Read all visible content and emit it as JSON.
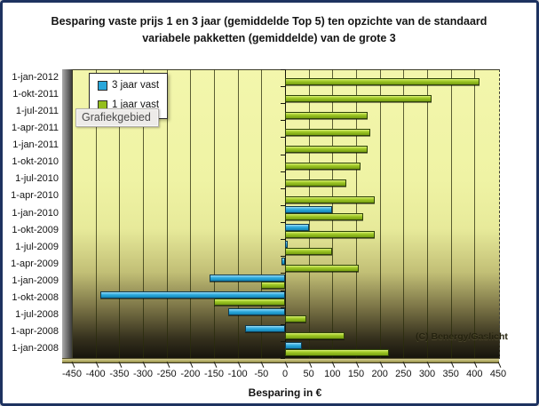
{
  "window": {
    "border_color": "#1d3260",
    "background": "#ffffff"
  },
  "tooltip": "Grafiekgebied",
  "copyright": "(C) Benergy/Gaslicht",
  "chart_data": {
    "type": "bar",
    "orientation": "horizontal",
    "title": "Besparing vaste prijs 1 en 3 jaar (gemiddelde Top 5) ten opzichte van de standaard variabele pakketten (gemiddelde) van de grote 3",
    "xlabel": "Besparing in €",
    "ylabel": "",
    "categories": [
      "1-jan-2012",
      "1-okt-2011",
      "1-jul-2011",
      "1-apr-2011",
      "1-jan-2011",
      "1-okt-2010",
      "1-jul-2010",
      "1-apr-2010",
      "1-jan-2010",
      "1-okt-2009",
      "1-jul-2009",
      "1-apr-2009",
      "1-jan-2009",
      "1-okt-2008",
      "1-jul-2008",
      "1-apr-2008",
      "1-jan-2008"
    ],
    "categories_order": "top-to-bottom",
    "series": [
      {
        "name": "3 jaar vast",
        "color": "#29a7db",
        "values": [
          null,
          null,
          null,
          null,
          null,
          null,
          null,
          null,
          100,
          50,
          5,
          -8,
          -160,
          -390,
          -120,
          -85,
          35
        ]
      },
      {
        "name": "1 jaar vast",
        "color": "#94be1e",
        "values": [
          410,
          310,
          175,
          180,
          175,
          160,
          130,
          190,
          165,
          190,
          100,
          155,
          -50,
          -150,
          45,
          125,
          220
        ]
      }
    ],
    "xlim": [
      -450,
      450
    ],
    "xtick_step": 50,
    "grid": true,
    "legend_position": "inside-top-left",
    "plot_background": "gradient #f3f6ac (top) to #15130c (bottom)"
  }
}
